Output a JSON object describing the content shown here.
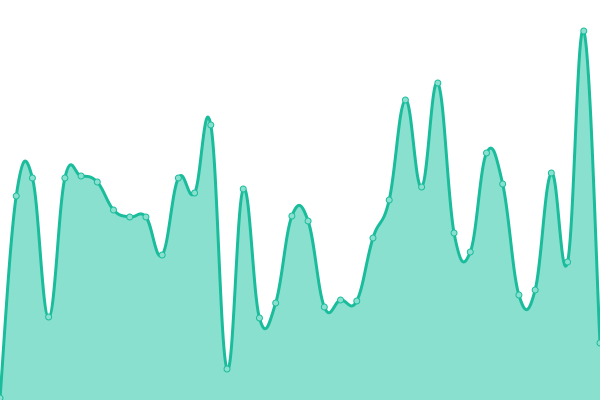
{
  "chart_data": {
    "type": "area",
    "title": "",
    "xlabel": "",
    "ylabel": "",
    "ylim": [
      0,
      400
    ],
    "grid": false,
    "smooth": true,
    "x": [
      0,
      1,
      2,
      3,
      4,
      5,
      6,
      7,
      8,
      9,
      10,
      11,
      12,
      13,
      14,
      15,
      16,
      17,
      18,
      19,
      20,
      21,
      22,
      23,
      24,
      25,
      26,
      27,
      28,
      29,
      30,
      31,
      32,
      33,
      34,
      35,
      36,
      37
    ],
    "series": [
      {
        "values": [
          2,
          204,
          222,
          83,
          222,
          224,
          218,
          190,
          183,
          183,
          145,
          222,
          207,
          275,
          31,
          211,
          82,
          97,
          184,
          179,
          93,
          100,
          99,
          162,
          200,
          300,
          213,
          317,
          167,
          148,
          247,
          216,
          105,
          110,
          227,
          138,
          369,
          57
        ],
        "line_color": "#1abc9c",
        "fill_color": "#8ae0cf",
        "marker_fill": "#8ae0cf"
      }
    ]
  }
}
